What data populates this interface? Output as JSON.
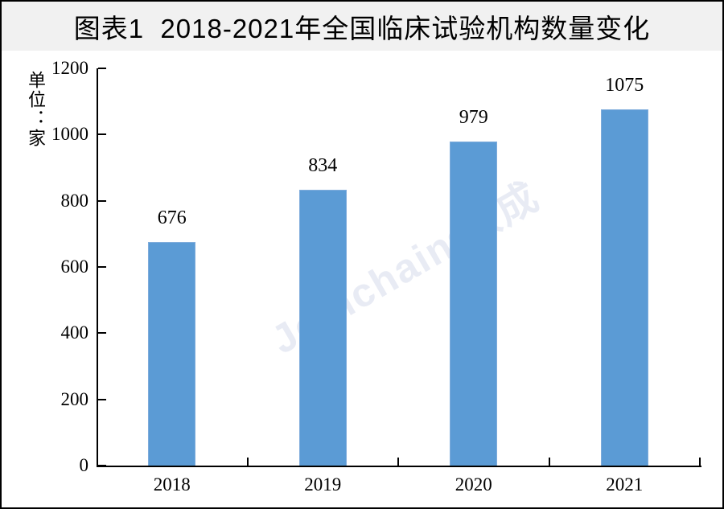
{
  "header": {
    "background": "#F1F1F1"
  },
  "watermark": {
    "brand": "Joinchain",
    "reg": "®",
    "suffix": "众成",
    "color": "#E8EBF4"
  },
  "colors": {
    "bar_fill": "#5B9BD5",
    "bar_edge": "#7FACDC",
    "axis": "#000000",
    "text": "#000000",
    "frame_border": "#000000"
  },
  "chart_data": {
    "type": "bar",
    "title": "图表1  2018-2021年全国临床试验机构数量变化",
    "categories": [
      "2018",
      "2019",
      "2020",
      "2021"
    ],
    "values": [
      676,
      834,
      979,
      1075
    ],
    "data_labels": [
      "676",
      "834",
      "979",
      "1075"
    ],
    "xlabel": "",
    "ylabel": "单位：家",
    "ylim": [
      0,
      1200
    ],
    "yticks": [
      0,
      200,
      400,
      600,
      800,
      1000,
      1200
    ],
    "ytick_labels": [
      "0",
      "200",
      "400",
      "600",
      "800",
      "1000",
      "1200"
    ],
    "grid": false,
    "legend": false,
    "bar_value_labels": true
  }
}
